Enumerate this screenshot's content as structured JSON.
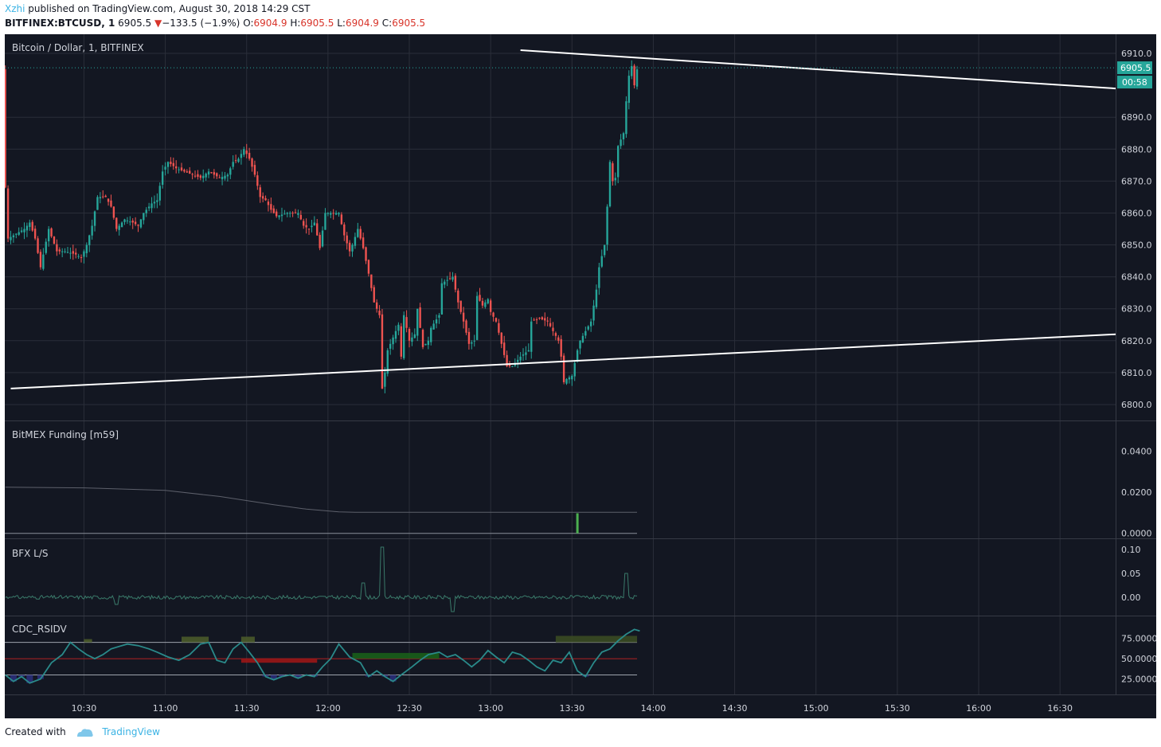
{
  "header": {
    "user": "Xzhi",
    "published_text": "published on TradingView.com, August 30, 2018 14:29 CST",
    "symbol": "BITFINEX:BTCUSD",
    "interval": ", 1",
    "last": "6905.5",
    "change": "−133.5 (−1.9%)",
    "o_label": "O:",
    "o": "6904.9",
    "h_label": "H:",
    "h": "6905.5",
    "l_label": "L:",
    "l": "6904.9",
    "c_label": "C:",
    "c": "6905.5"
  },
  "footer": {
    "created_with": "Created with",
    "brand": "TradingView"
  },
  "colors": {
    "bg": "#131722",
    "up": "#26a69a",
    "down": "#ef5350",
    "grid": "#2a2e39",
    "axis_text": "#d1d4dc",
    "price_tag": "#26a69a"
  },
  "chart_data": [
    {
      "type": "candlestick",
      "title": "Bitcoin / Dollar, 1, BITFINEX",
      "price_label": "6905.5",
      "countdown_label": "00:58",
      "y_ticks": [
        "6910.0",
        "6890.0",
        "6880.0",
        "6870.0",
        "6860.0",
        "6850.0",
        "6840.0",
        "6830.0",
        "6820.0",
        "6810.0",
        "6800.0"
      ],
      "ylim": [
        6797,
        6914
      ],
      "x_ticks": [
        "10:30",
        "11:00",
        "11:30",
        "12:00",
        "12:30",
        "13:00",
        "13:30",
        "14:00",
        "14:30",
        "15:00",
        "15:30",
        "16:00",
        "16:30"
      ],
      "x_tick_minutes": [
        630,
        660,
        690,
        720,
        750,
        780,
        810,
        840,
        870,
        900,
        930,
        960,
        990
      ],
      "xlim": [
        600.8,
        1010.5
      ],
      "close_path": [
        [
          601,
          6868
        ],
        [
          602,
          6852
        ],
        [
          604,
          6853
        ],
        [
          608,
          6855
        ],
        [
          610,
          6857
        ],
        [
          612,
          6852
        ],
        [
          614,
          6843
        ],
        [
          617,
          6855
        ],
        [
          620,
          6848
        ],
        [
          623,
          6848
        ],
        [
          627,
          6847
        ],
        [
          629,
          6846
        ],
        [
          631,
          6850
        ],
        [
          633,
          6856
        ],
        [
          635,
          6865
        ],
        [
          638,
          6865
        ],
        [
          640,
          6862
        ],
        [
          642,
          6855
        ],
        [
          645,
          6858
        ],
        [
          648,
          6857
        ],
        [
          650,
          6856
        ],
        [
          652,
          6860
        ],
        [
          655,
          6863
        ],
        [
          657,
          6864
        ],
        [
          659,
          6873
        ],
        [
          661,
          6876
        ],
        [
          664,
          6874
        ],
        [
          667,
          6873
        ],
        [
          670,
          6872
        ],
        [
          673,
          6871
        ],
        [
          676,
          6873
        ],
        [
          680,
          6871
        ],
        [
          683,
          6872
        ],
        [
          685,
          6876
        ],
        [
          687,
          6877
        ],
        [
          689,
          6880
        ],
        [
          691,
          6877
        ],
        [
          693,
          6872
        ],
        [
          695,
          6865
        ],
        [
          697,
          6864
        ],
        [
          699,
          6861
        ],
        [
          701,
          6859
        ],
        [
          705,
          6860
        ],
        [
          709,
          6860
        ],
        [
          711,
          6856
        ],
        [
          713,
          6855
        ],
        [
          715,
          6857
        ],
        [
          717,
          6849
        ],
        [
          719,
          6860
        ],
        [
          721,
          6860
        ],
        [
          724,
          6860
        ],
        [
          726,
          6853
        ],
        [
          728,
          6848
        ],
        [
          729,
          6850
        ],
        [
          731,
          6855
        ],
        [
          733,
          6849
        ],
        [
          735,
          6841
        ],
        [
          737,
          6832
        ],
        [
          739,
          6828
        ],
        [
          740,
          6805
        ],
        [
          741,
          6810
        ],
        [
          742,
          6817
        ],
        [
          744,
          6821
        ],
        [
          746,
          6825
        ],
        [
          747,
          6815
        ],
        [
          748,
          6828
        ],
        [
          750,
          6820
        ],
        [
          752,
          6822
        ],
        [
          753,
          6830
        ],
        [
          755,
          6818
        ],
        [
          757,
          6820
        ],
        [
          758,
          6824
        ],
        [
          761,
          6828
        ],
        [
          762,
          6838
        ],
        [
          764,
          6839
        ],
        [
          766,
          6840
        ],
        [
          768,
          6832
        ],
        [
          770,
          6826
        ],
        [
          772,
          6819
        ],
        [
          774,
          6820
        ],
        [
          775,
          6834
        ],
        [
          777,
          6831
        ],
        [
          779,
          6833
        ],
        [
          780,
          6829
        ],
        [
          782,
          6826
        ],
        [
          784,
          6819
        ],
        [
          786,
          6812
        ],
        [
          788,
          6812
        ],
        [
          791,
          6815
        ],
        [
          794,
          6817
        ],
        [
          795,
          6826
        ],
        [
          798,
          6827
        ],
        [
          801,
          6826
        ],
        [
          803,
          6823
        ],
        [
          805,
          6820
        ],
        [
          806,
          6815
        ],
        [
          807,
          6807
        ],
        [
          808,
          6808
        ],
        [
          810,
          6809
        ],
        [
          812,
          6817
        ],
        [
          813,
          6820
        ],
        [
          815,
          6823
        ],
        [
          817,
          6826
        ],
        [
          819,
          6836
        ],
        [
          820,
          6843
        ],
        [
          822,
          6850
        ],
        [
          823,
          6862
        ],
        [
          824,
          6876
        ],
        [
          825,
          6870
        ],
        [
          826,
          6871
        ],
        [
          827,
          6881
        ],
        [
          829,
          6885
        ],
        [
          830,
          6895
        ],
        [
          831,
          6903
        ],
        [
          832,
          6906
        ],
        [
          833,
          6900
        ],
        [
          834,
          6905
        ]
      ],
      "overlay_lines": [
        {
          "from": [
            603,
            6805
          ],
          "to": [
            1010.5,
            6822
          ]
        },
        {
          "from": [
            791,
            6911
          ],
          "to": [
            1010.5,
            6899
          ]
        }
      ]
    },
    {
      "type": "line",
      "title": "BitMEX Funding [m59]",
      "y_ticks": [
        "0.0400",
        "0.0200",
        "0.0000"
      ],
      "ylim": [
        -0.0005,
        0.05
      ],
      "x": [
        601,
        630,
        660,
        680,
        700,
        712,
        724,
        730,
        834
      ],
      "values": [
        0.0225,
        0.0222,
        0.021,
        0.018,
        0.014,
        0.0118,
        0.0105,
        0.0103,
        0.0103
      ],
      "bar_at": 812,
      "bar_value": 0.0098
    },
    {
      "type": "line",
      "title": "BFX L/S",
      "y_ticks": [
        "0.10",
        "0.05",
        "0.00"
      ],
      "ylim": [
        -0.035,
        0.115
      ],
      "spikes": [
        [
          740,
          0.105
        ],
        [
          733,
          0.03
        ],
        [
          830,
          0.05
        ],
        [
          766,
          -0.03
        ],
        [
          642,
          -0.015
        ],
        [
          603,
          0.0
        ]
      ]
    },
    {
      "type": "line",
      "title": "CDC_RSIDV",
      "y_ticks": [
        "75.0000",
        "50.0000",
        "25.0000"
      ],
      "ylim": [
        8,
        98
      ],
      "levels": [
        70,
        50,
        30
      ],
      "x": [
        601,
        604,
        607,
        610,
        614,
        618,
        622,
        625,
        628,
        631,
        634,
        637,
        640,
        643,
        646,
        650,
        654,
        657,
        661,
        665,
        669,
        673,
        676,
        679,
        682,
        685,
        688,
        691,
        694,
        697,
        700,
        703,
        706,
        709,
        712,
        715,
        718,
        721,
        724,
        728,
        732,
        735,
        738,
        741,
        744,
        747,
        751,
        754,
        757,
        761,
        764,
        767,
        770,
        773,
        776,
        779,
        782,
        785,
        788,
        791,
        794,
        797,
        800,
        803,
        806,
        809,
        812,
        815,
        818,
        821,
        824,
        827,
        830,
        833,
        835
      ],
      "values": [
        30,
        22,
        28,
        20,
        25,
        45,
        55,
        70,
        62,
        55,
        50,
        55,
        62,
        65,
        68,
        66,
        62,
        58,
        52,
        48,
        55,
        68,
        70,
        48,
        45,
        62,
        70,
        58,
        45,
        28,
        24,
        28,
        30,
        26,
        30,
        28,
        40,
        50,
        68,
        52,
        45,
        28,
        35,
        28,
        22,
        30,
        40,
        48,
        55,
        58,
        52,
        55,
        48,
        40,
        48,
        60,
        52,
        45,
        58,
        55,
        48,
        40,
        35,
        48,
        45,
        58,
        35,
        28,
        45,
        58,
        62,
        72,
        80,
        86,
        84
      ],
      "bands": [
        {
          "from": 666,
          "to": 676,
          "level": 77,
          "color": "#4a5a2a"
        },
        {
          "from": 688,
          "to": 693,
          "level": 77,
          "color": "#4a5a2a"
        },
        {
          "from": 630,
          "to": 633,
          "level": 74,
          "color": "#4a5a2a"
        },
        {
          "from": 804,
          "to": 834,
          "level": 78,
          "color": "#3a4a22"
        },
        {
          "from": 688,
          "to": 716,
          "level": 45,
          "color": "#9b1616"
        },
        {
          "from": 729,
          "to": 761,
          "level": 57,
          "color": "#1a5e1a"
        }
      ]
    }
  ]
}
